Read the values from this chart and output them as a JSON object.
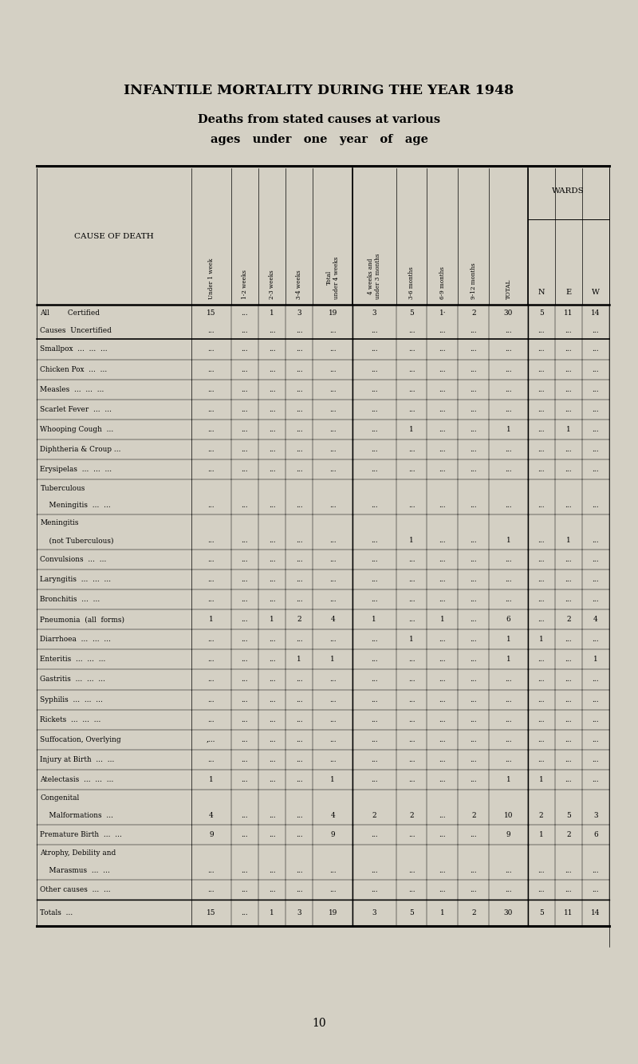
{
  "title": "INFANTILE MORTALITY DURING THE YEAR 1948",
  "subtitle1": "Deaths from stated causes at various",
  "subtitle2": "ages   under   one   year   of   age",
  "bg_color": "#d4d0c4",
  "col_headers": [
    "Under 1 week",
    "1-2 weeks",
    "2-3 weeks",
    "3-4 weeks",
    "Total\nunder 4 weeks",
    "4 weeks and\nunder 3 months",
    "3-6 months",
    "6-9 months",
    "9-12 months",
    "TOTAL",
    "N",
    "E",
    "W"
  ],
  "wards_label": "WARDS",
  "cause_label": "CAUSE OF DEATH",
  "rows": [
    {
      "cause": [
        "All        Certified",
        "Causes  Uncertified"
      ],
      "data": [
        [
          "15",
          "...",
          "1",
          "3",
          "19",
          "3",
          "5",
          "1·",
          "2",
          "30",
          "5",
          "11",
          "14"
        ],
        [
          "...",
          "...",
          "...",
          "...",
          "...",
          "...",
          "...",
          "...",
          "...",
          "...",
          "...",
          "...",
          "..."
        ]
      ],
      "double": true,
      "separator_after": true
    },
    {
      "cause": [
        "Smallpox  ...  ...  ..."
      ],
      "data": [
        [
          "...",
          "...",
          "...",
          "...",
          "...",
          "...",
          "...",
          "...",
          "...",
          "...",
          "...",
          "...",
          "..."
        ]
      ],
      "double": false,
      "separator_after": false
    },
    {
      "cause": [
        "Chicken Pox  ...  ..."
      ],
      "data": [
        [
          "...",
          "...",
          "...",
          "...",
          "...",
          "...",
          "...",
          "...",
          "...",
          "...",
          "...",
          "...",
          "..."
        ]
      ],
      "double": false,
      "separator_after": false
    },
    {
      "cause": [
        "Measles  ...  ...  ..."
      ],
      "data": [
        [
          "...",
          "...",
          "...",
          "...",
          "...",
          "...",
          "...",
          "...",
          "...",
          "...",
          "...",
          "...",
          "..."
        ]
      ],
      "double": false,
      "separator_after": false
    },
    {
      "cause": [
        "Scarlet Fever  ...  ..."
      ],
      "data": [
        [
          "...",
          "...",
          "...",
          "...",
          "...",
          "...",
          "...",
          "...",
          "...",
          "...",
          "...",
          "...",
          "..."
        ]
      ],
      "double": false,
      "separator_after": false
    },
    {
      "cause": [
        "Whooping Cough  ..."
      ],
      "data": [
        [
          "...",
          "...",
          "...",
          "...",
          "...",
          "...",
          "1",
          "...",
          "...",
          "1",
          "...",
          "1",
          "..."
        ]
      ],
      "double": false,
      "separator_after": false
    },
    {
      "cause": [
        "Diphtheria & Croup ..."
      ],
      "data": [
        [
          "...",
          "...",
          "...",
          "...",
          "...",
          "...",
          "...",
          "...",
          "...",
          "...",
          "...",
          "...",
          "..."
        ]
      ],
      "double": false,
      "separator_after": false
    },
    {
      "cause": [
        "Erysipelas  ...  ...  ..."
      ],
      "data": [
        [
          "...",
          "...",
          "...",
          "...",
          "...",
          "...",
          "...",
          "...",
          "...",
          "...",
          "...",
          "...",
          "..."
        ]
      ],
      "double": false,
      "separator_after": false
    },
    {
      "cause": [
        "Tuberculous",
        "    Meningitis  ...  ..."
      ],
      "data": [
        [
          "...",
          "...",
          "...",
          "...",
          "...",
          "...",
          "...",
          "...",
          "...",
          "...",
          "...",
          "...",
          "..."
        ]
      ],
      "double": true,
      "separator_after": false
    },
    {
      "cause": [
        "Meningitis",
        "    (not Tuberculous)"
      ],
      "data": [
        [
          "...",
          "...",
          "...",
          "...",
          "...",
          "...",
          "1",
          "...",
          "...",
          "1",
          "...",
          "1",
          "..."
        ]
      ],
      "double": true,
      "separator_after": false
    },
    {
      "cause": [
        "Convulsions  ...  ..."
      ],
      "data": [
        [
          "...",
          "...",
          "...",
          "...",
          "...",
          "...",
          "...",
          "...",
          "...",
          "...",
          "...",
          "...",
          "..."
        ]
      ],
      "double": false,
      "separator_after": false
    },
    {
      "cause": [
        "Laryngitis  ...  ...  ..."
      ],
      "data": [
        [
          "...",
          "...",
          "...",
          "...",
          "...",
          "...",
          "...",
          "...",
          "...",
          "...",
          "...",
          "...",
          "..."
        ]
      ],
      "double": false,
      "separator_after": false
    },
    {
      "cause": [
        "Bronchitis  ...  ..."
      ],
      "data": [
        [
          "...",
          "...",
          "...",
          "...",
          "...",
          "...",
          "...",
          "...",
          "...",
          "...",
          "...",
          "...",
          "..."
        ]
      ],
      "double": false,
      "separator_after": false
    },
    {
      "cause": [
        "Pneumonia  (all  forms)"
      ],
      "data": [
        [
          "1",
          "...",
          "1",
          "2",
          "4",
          "1",
          "...",
          "1",
          "...",
          "6",
          "...",
          "2",
          "4"
        ]
      ],
      "double": false,
      "separator_after": false
    },
    {
      "cause": [
        "Diarrhoea  ...  ...  ..."
      ],
      "data": [
        [
          "...",
          "...",
          "...",
          "...",
          "...",
          "...",
          "1",
          "...",
          "...",
          "1",
          "1",
          "...",
          "..."
        ]
      ],
      "double": false,
      "separator_after": false
    },
    {
      "cause": [
        "Enteritis  ...  ...  ..."
      ],
      "data": [
        [
          "...",
          "...",
          "...",
          "1",
          "1",
          "...",
          "...",
          "...",
          "...",
          "1",
          "...",
          "...",
          "1"
        ]
      ],
      "double": false,
      "separator_after": false
    },
    {
      "cause": [
        "Gastritis  ...  ...  ..."
      ],
      "data": [
        [
          "...",
          "...",
          "...",
          "...",
          "...",
          "...",
          "...",
          "...",
          "...",
          "...",
          "...",
          "...",
          "..."
        ]
      ],
      "double": false,
      "separator_after": false
    },
    {
      "cause": [
        "Syphilis  ...  ...  ..."
      ],
      "data": [
        [
          "...",
          "...",
          "...",
          "...",
          "...",
          "...",
          "...",
          "...",
          "...",
          "...",
          "...",
          "...",
          "..."
        ]
      ],
      "double": false,
      "separator_after": false
    },
    {
      "cause": [
        "Rickets  ...  ...  ..."
      ],
      "data": [
        [
          "...",
          "...",
          "...",
          "...",
          "...",
          "...",
          "...",
          "...",
          "...",
          "...",
          "...",
          "...",
          "..."
        ]
      ],
      "double": false,
      "separator_after": false
    },
    {
      "cause": [
        "Suffocation, Overlying"
      ],
      "data": [
        [
          ",...",
          "...",
          "...",
          "...",
          "...",
          "...",
          "...",
          "...",
          "...",
          "...",
          "...",
          "...",
          "..."
        ]
      ],
      "double": false,
      "separator_after": false
    },
    {
      "cause": [
        "Injury at Birth  ...  ..."
      ],
      "data": [
        [
          "...",
          "...",
          "...",
          "...",
          "...",
          "...",
          "...",
          "...",
          "...",
          "...",
          "...",
          "...",
          "..."
        ]
      ],
      "double": false,
      "separator_after": false
    },
    {
      "cause": [
        "Atelectasis  ...  ...  ..."
      ],
      "data": [
        [
          "1",
          "...",
          "...",
          "...",
          "1",
          "...",
          "...",
          "...",
          "...",
          "1",
          "1",
          "...",
          "..."
        ]
      ],
      "double": false,
      "separator_after": false
    },
    {
      "cause": [
        "Congenital",
        "    Malformations  ..."
      ],
      "data": [
        [
          "4",
          "...",
          "...",
          "...",
          "4",
          "2",
          "2",
          "...",
          "2",
          "10",
          "2",
          "5",
          "3"
        ]
      ],
      "double": true,
      "separator_after": false
    },
    {
      "cause": [
        "Premature Birth  ...  ..."
      ],
      "data": [
        [
          "9",
          "...",
          "...",
          "...",
          "9",
          "...",
          "...",
          "...",
          "...",
          "9",
          "1",
          "2",
          "6"
        ]
      ],
      "double": false,
      "separator_after": false
    },
    {
      "cause": [
        "Atrophy, Debility and",
        "    Marasmus  ...  ..."
      ],
      "data": [
        [
          "...",
          "...",
          "...",
          "...",
          "...",
          "...",
          "...",
          "...",
          "...",
          "...",
          "...",
          "...",
          "..."
        ]
      ],
      "double": true,
      "separator_after": false
    },
    {
      "cause": [
        "Other causes  ...  ..."
      ],
      "data": [
        [
          "...",
          "...",
          "...",
          "...",
          "...",
          "...",
          "...",
          "...",
          "...",
          "...",
          "...",
          "...",
          "..."
        ]
      ],
      "double": false,
      "separator_after": false
    }
  ],
  "totals_row": [
    "15",
    "...",
    "1",
    "3",
    "19",
    "3",
    "5",
    "1",
    "2",
    "30",
    "5",
    "11",
    "14"
  ],
  "page_number": "10"
}
